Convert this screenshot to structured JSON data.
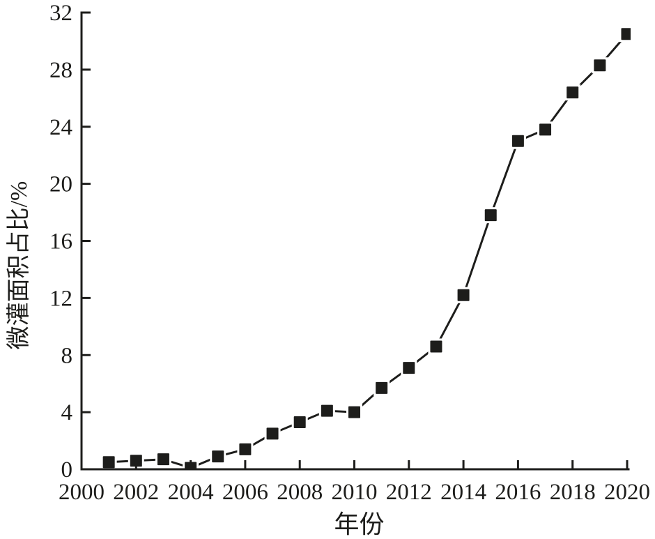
{
  "figure": {
    "background_color": "#ffffff",
    "ink_color": "#1d1d1b"
  },
  "chart_data": {
    "type": "line",
    "x": [
      2001,
      2002,
      2003,
      2004,
      2005,
      2006,
      2007,
      2008,
      2009,
      2010,
      2011,
      2012,
      2013,
      2014,
      2015,
      2016,
      2017,
      2018,
      2019,
      2020
    ],
    "values": [
      0.5,
      0.6,
      0.7,
      0.1,
      0.9,
      1.4,
      2.5,
      3.3,
      4.1,
      4.0,
      5.7,
      7.1,
      8.6,
      12.2,
      17.8,
      23.0,
      23.8,
      26.4,
      28.3,
      30.5
    ],
    "title": "",
    "xlabel": "年份",
    "ylabel": "微灌面积占比/%",
    "xlim": [
      2000,
      2020
    ],
    "ylim": [
      0,
      32
    ],
    "x_ticks": [
      "2000",
      "2002",
      "2004",
      "2006",
      "2008",
      "2010",
      "2012",
      "2014",
      "2016",
      "2018",
      "2020"
    ],
    "x_tick_values": [
      2000,
      2002,
      2004,
      2006,
      2008,
      2010,
      2012,
      2014,
      2016,
      2018,
      2020
    ],
    "y_ticks": [
      "0",
      "4",
      "8",
      "12",
      "16",
      "20",
      "24",
      "28",
      "32"
    ],
    "y_tick_values": [
      0,
      4,
      8,
      12,
      16,
      20,
      24,
      28,
      32
    ],
    "grid": false,
    "legend": "none",
    "marker": "filled-square",
    "marker_color": "#1d1d1b",
    "line_style": "solid",
    "line_color": "#1d1d1b"
  }
}
